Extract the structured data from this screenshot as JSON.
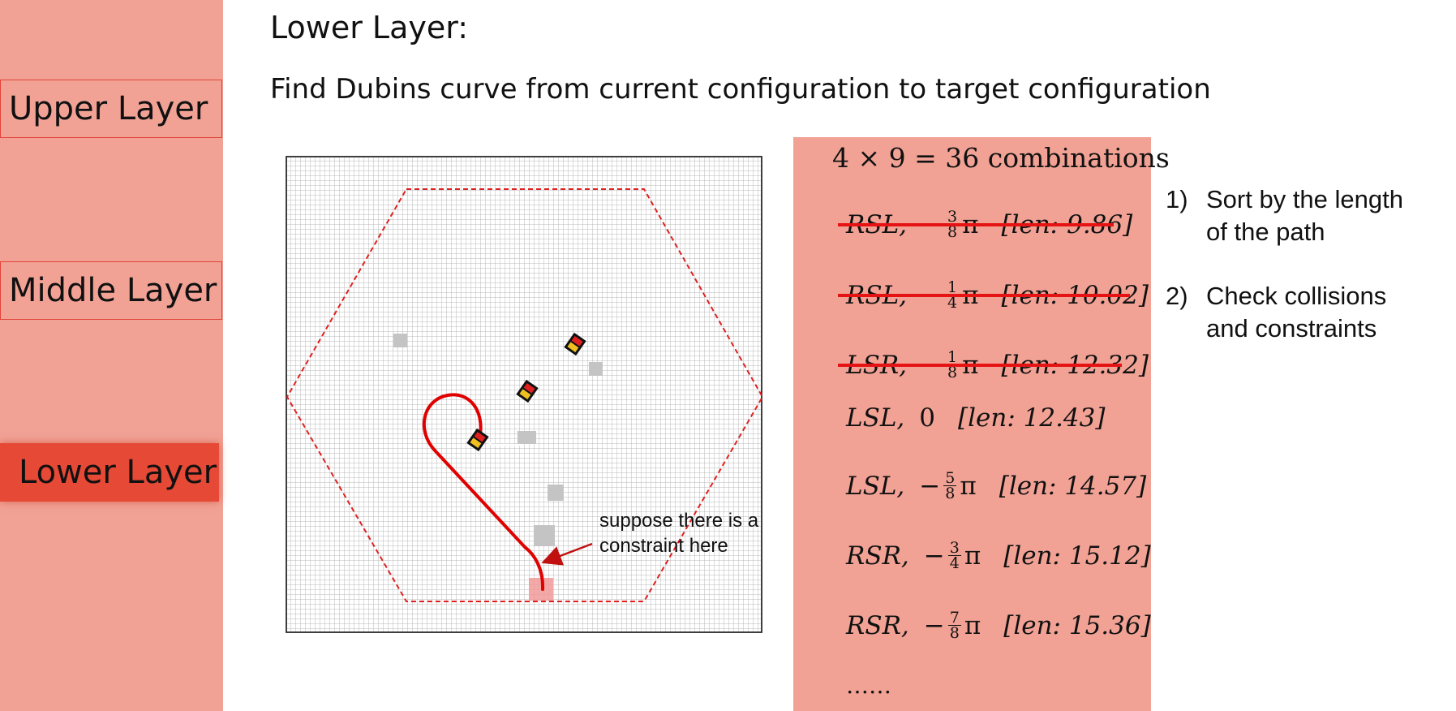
{
  "sidebar": {
    "items": [
      {
        "label": "Upper Layer",
        "active": false
      },
      {
        "label": "Middle Layer",
        "active": false
      },
      {
        "label": "Lower Layer",
        "active": true
      }
    ]
  },
  "header": {
    "title": "Lower Layer:",
    "subtitle": "Find Dubins curve from current configuration to target configuration"
  },
  "diagram": {
    "annotation_line1": "suppose there is a",
    "annotation_line2": "constraint here",
    "colors": {
      "hexagon": "#e02020",
      "path": "#e00000",
      "grid": "#b8b8b8",
      "obstacle": "#c4c4c4",
      "constraint": "#f29a9a"
    },
    "icons": [
      "vehicle-icon",
      "vehicle-icon",
      "vehicle-icon"
    ]
  },
  "combinations": {
    "title": "4 × 9 = 36 combinations",
    "rows": [
      {
        "name": "RSL,",
        "sign": "−",
        "num": "3",
        "den": "8",
        "angle_suffix": "π",
        "len": "[len: 9.86]",
        "struck": true
      },
      {
        "name": "RSL,",
        "sign": "−",
        "num": "1",
        "den": "4",
        "angle_suffix": "π",
        "len": "[len: 10.02]",
        "struck": true
      },
      {
        "name": "LSR,",
        "sign": "−",
        "num": "1",
        "den": "8",
        "angle_suffix": "π",
        "len": "[len: 12.32]",
        "struck": true
      },
      {
        "name": "LSL,",
        "sign": "",
        "num": "",
        "den": "",
        "angle_suffix": "0",
        "len": "[len: 12.43]",
        "struck": false
      },
      {
        "name": "LSL,",
        "sign": "−",
        "num": "5",
        "den": "8",
        "angle_suffix": "π",
        "len": "[len: 14.57]",
        "struck": false
      },
      {
        "name": "RSR,",
        "sign": "−",
        "num": "3",
        "den": "4",
        "angle_suffix": "π",
        "len": "[len: 15.12]",
        "struck": false
      },
      {
        "name": "RSR,",
        "sign": "−",
        "num": "7",
        "den": "8",
        "angle_suffix": "π",
        "len": "[len: 15.36]",
        "struck": false
      }
    ],
    "ellipsis": "……"
  },
  "steps": [
    {
      "num": "1)",
      "line1": "Sort by the length",
      "line2": "of the path"
    },
    {
      "num": "2)",
      "line1": "Check collisions",
      "line2": "and constraints"
    }
  ]
}
